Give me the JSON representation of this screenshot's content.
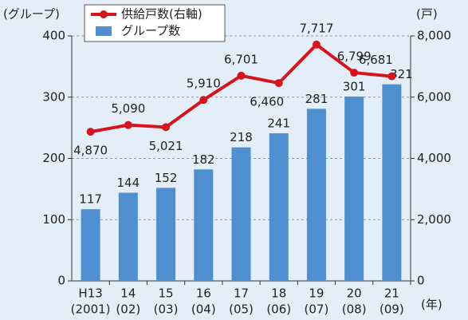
{
  "chart_data": {
    "type": "bar_line",
    "y_label": "(グループ)",
    "y2_label": "(戸)",
    "x_unit": "(年)",
    "categories": [
      "H13",
      "14",
      "15",
      "16",
      "17",
      "18",
      "19",
      "20",
      "21"
    ],
    "category_years": [
      "(2001)",
      "(02)",
      "(03)",
      "(04)",
      "(05)",
      "(06)",
      "(07)",
      "(08)",
      "(09)"
    ],
    "series": [
      {
        "name": "供給戸数(右軸)",
        "type": "line",
        "axis": "y2",
        "color": "#d7141e",
        "values": [
          4870,
          5090,
          5021,
          5910,
          6701,
          6460,
          7717,
          6799,
          6681
        ],
        "value_labels": [
          "4,870",
          "5,090",
          "5,021",
          "5,910",
          "6,701",
          "6,460",
          "7,717",
          "6,799",
          "6,681"
        ]
      },
      {
        "name": "グループ数",
        "type": "bar",
        "color": "#4f8fd0",
        "values": [
          117,
          144,
          152,
          182,
          218,
          241,
          281,
          301,
          321
        ]
      }
    ],
    "ylim": [
      0,
      400
    ],
    "yticks": [
      0,
      100,
      200,
      300,
      400
    ],
    "y2lim": [
      0,
      8000
    ],
    "y2ticks": [
      0,
      {
        "value": 2000,
        "label": "2,000"
      },
      {
        "value": 4000,
        "label": "4,000"
      },
      {
        "value": 6000,
        "label": "6,000"
      },
      {
        "value": 8000,
        "label": "8,000"
      }
    ],
    "grid": true,
    "legend": "top-left"
  }
}
